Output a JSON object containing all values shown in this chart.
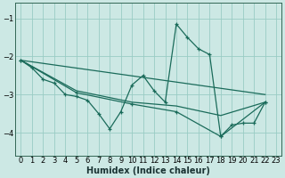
{
  "xlabel": "Humidex (Indice chaleur)",
  "ylabel": "",
  "xlim": [
    -0.5,
    23.5
  ],
  "ylim": [
    -4.6,
    -0.6
  ],
  "yticks": [
    -4,
    -3,
    -2,
    -1
  ],
  "xticks": [
    0,
    1,
    2,
    3,
    4,
    5,
    6,
    7,
    8,
    9,
    10,
    11,
    12,
    13,
    14,
    15,
    16,
    17,
    18,
    19,
    20,
    21,
    22,
    23
  ],
  "bg_color": "#cce8e4",
  "grid_color": "#99ccc4",
  "line_color": "#1a6b5a",
  "line_main": [
    [
      0,
      -2.1
    ],
    [
      1,
      -2.3
    ],
    [
      2,
      -2.6
    ],
    [
      3,
      -2.7
    ],
    [
      4,
      -3.0
    ],
    [
      5,
      -3.05
    ],
    [
      6,
      -3.15
    ],
    [
      7,
      -3.5
    ],
    [
      8,
      -3.9
    ],
    [
      9,
      -3.45
    ],
    [
      10,
      -2.75
    ],
    [
      11,
      -2.5
    ],
    [
      12,
      -2.9
    ],
    [
      13,
      -3.2
    ],
    [
      14,
      -1.15
    ],
    [
      15,
      -1.5
    ],
    [
      16,
      -1.8
    ],
    [
      17,
      -1.95
    ],
    [
      18,
      -4.1
    ],
    [
      19,
      -3.8
    ],
    [
      20,
      -3.75
    ],
    [
      21,
      -3.75
    ],
    [
      22,
      -3.2
    ]
  ],
  "line_trend1": [
    [
      0,
      -2.1
    ],
    [
      22,
      -3.0
    ]
  ],
  "line_trend2": [
    [
      0,
      -2.1
    ],
    [
      5,
      -2.9
    ],
    [
      10,
      -3.2
    ],
    [
      14,
      -3.3
    ],
    [
      18,
      -3.55
    ],
    [
      22,
      -3.2
    ]
  ],
  "line_trend3": [
    [
      0,
      -2.1
    ],
    [
      5,
      -2.95
    ],
    [
      10,
      -3.25
    ],
    [
      14,
      -3.45
    ],
    [
      18,
      -4.1
    ],
    [
      22,
      -3.2
    ]
  ]
}
